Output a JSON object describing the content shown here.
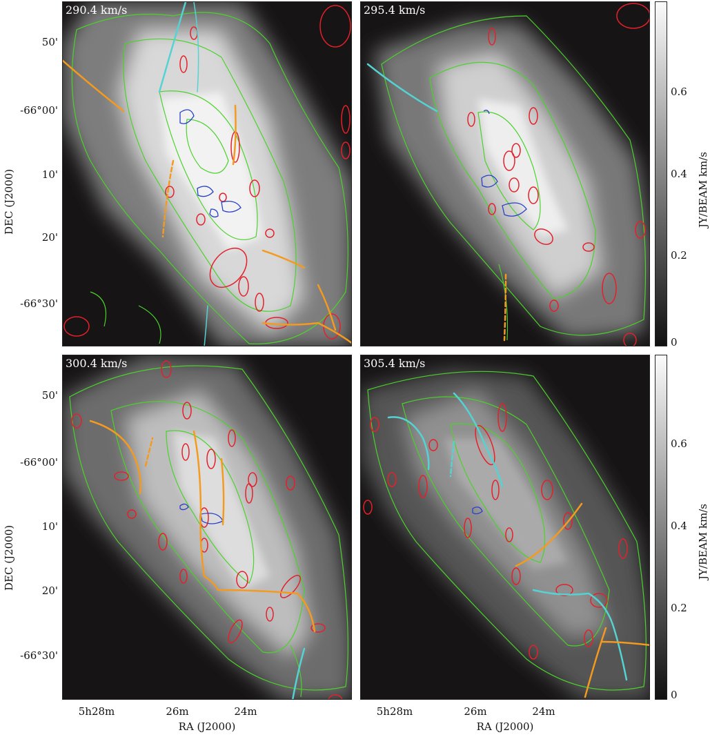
{
  "panels": [
    {
      "velocity": "290.4 km/s"
    },
    {
      "velocity": "295.4 km/s"
    },
    {
      "velocity": "300.4 km/s"
    },
    {
      "velocity": "305.4 km/s"
    }
  ],
  "axes": {
    "dec_ticks": [
      "50'",
      "-66°00'",
      "10'",
      "20'",
      "-66°30'"
    ],
    "ra_ticks": [
      "5h28m",
      "26m",
      "24m"
    ],
    "xlabel": "RA (J2000)",
    "ylabel": "DEC (J2000)"
  },
  "colorbar": {
    "ticks": [
      "0.6",
      "0.4",
      "0.2",
      "0"
    ],
    "label": "JY/BEAM  km/s"
  },
  "colors": {
    "contour_green": "#4bd22b",
    "ellipse_red": "#e4202a",
    "filament_orange": "#f39a1f",
    "filament_cyan": "#55d2d2",
    "contour_blue": "#2840c8"
  }
}
